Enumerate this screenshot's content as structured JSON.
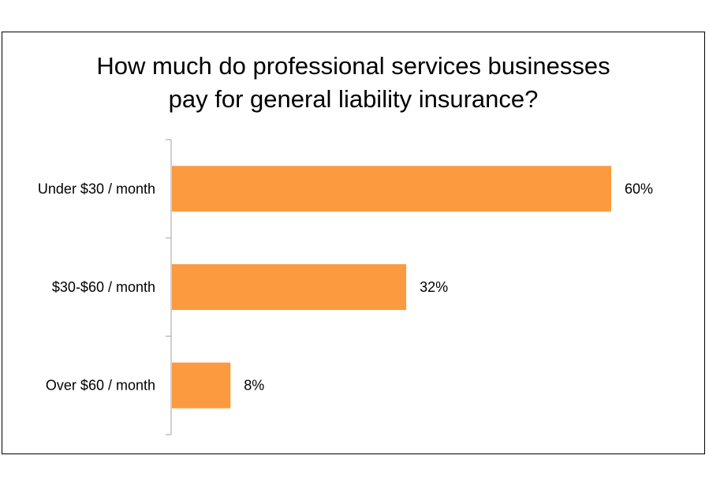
{
  "chart_data": {
    "type": "bar",
    "orientation": "horizontal",
    "title_lines": [
      "How much do professional services businesses",
      "pay for general liability insurance?"
    ],
    "categories": [
      "Under $30 / month",
      "$30-$60 / month",
      "Over $60 / month"
    ],
    "values": [
      60,
      32,
      8
    ],
    "data_labels": [
      "60%",
      "32%",
      "8%"
    ],
    "xlim": [
      0,
      60
    ],
    "grid": false,
    "legend": "none",
    "bar_color": "#FB9A3E",
    "axis_color": "#BFBFBF"
  }
}
